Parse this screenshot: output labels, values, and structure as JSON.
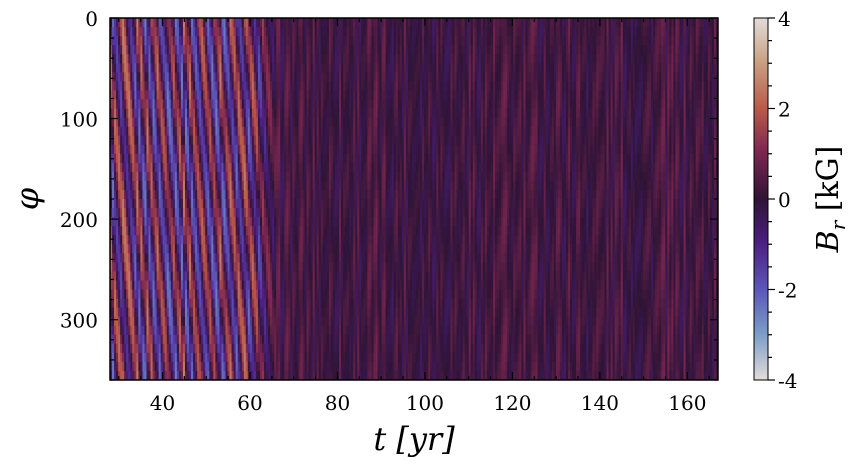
{
  "chart_data": {
    "type": "heatmap",
    "title": "",
    "xlabel": "t [yr]",
    "ylabel": "φ",
    "xlim": [
      28,
      167
    ],
    "ylim": [
      0,
      360
    ],
    "y_inverted": true,
    "x_ticks": [
      40,
      60,
      80,
      100,
      120,
      140,
      160
    ],
    "y_ticks": [
      0,
      100,
      200,
      300
    ],
    "colorbar": {
      "label": "B_r [kG]",
      "range": [
        -4,
        4
      ],
      "ticks": [
        4,
        2,
        0,
        -2,
        -4
      ],
      "colormap": "twilight_shifted"
    },
    "features": [
      {
        "x_range": [
          28,
          66
        ],
        "description_pattern": "oblique wave bands, amplitude ~2 kG, phase drift ~ +50 deg/yr"
      },
      {
        "x_range": [
          66,
          167
        ],
        "description_pattern": "weak fine-scale vertical striations, amplitude ~0.5 kG"
      }
    ]
  }
}
